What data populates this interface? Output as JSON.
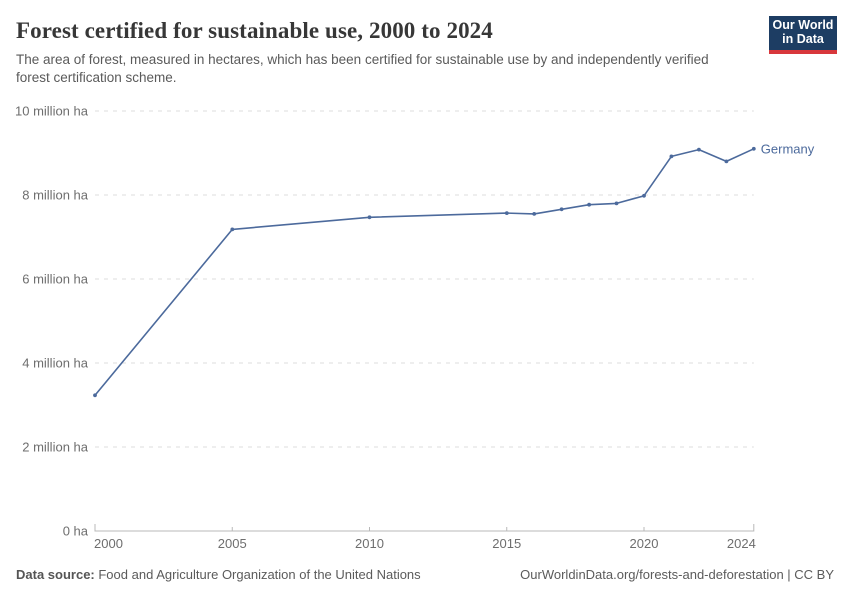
{
  "header": {
    "title": "Forest certified for sustainable use, 2000 to 2024",
    "subtitle": "The area of forest, measured in hectares, which has been certified for sustainable use by and independently verified forest certification scheme.",
    "logo": {
      "line1": "Our World",
      "line2": "in Data"
    }
  },
  "chart_data": {
    "type": "line",
    "title": "Forest certified for sustainable use, 2000 to 2024",
    "unit": "ha",
    "xlim": [
      2000,
      2024
    ],
    "ylim_million_ha": [
      0,
      10
    ],
    "grid": "horizontal dashed gridlines",
    "legend_position": "end-of-line label",
    "x_ticks": [
      2000,
      2005,
      2010,
      2015,
      2020,
      2024
    ],
    "y_ticks": [
      {
        "value": 0,
        "label": "0 ha"
      },
      {
        "value": 2,
        "label": "2 million ha"
      },
      {
        "value": 4,
        "label": "4 million ha"
      },
      {
        "value": 6,
        "label": "6 million ha"
      },
      {
        "value": 8,
        "label": "8 million ha"
      },
      {
        "value": 10,
        "label": "10 million ha"
      }
    ],
    "series": [
      {
        "name": "Germany",
        "color": "#4c6a9c",
        "x": [
          2000,
          2005,
          2010,
          2015,
          2016,
          2017,
          2018,
          2019,
          2020,
          2021,
          2022,
          2023,
          2024
        ],
        "values_million_ha": [
          3.23,
          7.18,
          7.47,
          7.57,
          7.55,
          7.66,
          7.77,
          7.8,
          7.98,
          8.92,
          9.08,
          8.8,
          9.1
        ]
      }
    ]
  },
  "footer": {
    "datasource_label": "Data source:",
    "datasource_rest": " Food and Agriculture Organization of the United Nations",
    "link": "OurWorldinData.org/forests-and-deforestation | CC BY"
  },
  "colors": {
    "series_blue": "#4c6a9c",
    "logo_navy": "#1d3d63",
    "logo_red": "#d8373c",
    "gridline": "#dcdcdc",
    "axis": "#b8b8b8",
    "tick_text": "#6e6e6e"
  }
}
